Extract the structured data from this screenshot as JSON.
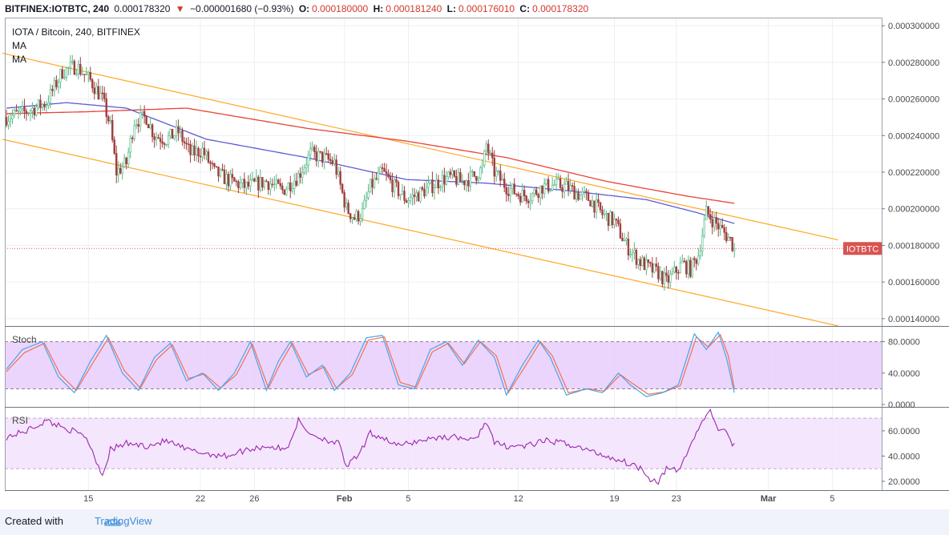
{
  "header": {
    "symbol": "BITFINEX:IOTBTC, 240",
    "last": "0.000178320",
    "change_arrow": "▼",
    "change": "−0.000001680 (−0.93%)",
    "open_label": "O:",
    "open": "0.000180000",
    "high_label": "H:",
    "high": "0.000181240",
    "low_label": "L:",
    "low": "0.000176010",
    "close_label": "C:",
    "close": "0.000178320"
  },
  "legend": {
    "title": "IOTA / Bitcoin, 240, BITFINEX",
    "ma1": "MA",
    "ma2": "MA"
  },
  "price_badge": "IOTBTC",
  "footer": {
    "created_with": "Created with",
    "brand": "TradingView",
    "logo_icon": "tradingview-cloud-icon"
  },
  "colors": {
    "up": "#53b987",
    "down": "#a13e3e",
    "candle_up_body": "#ffffff",
    "ma_blue": "#5c5bd5",
    "ma_red": "#e8433a",
    "channel": "#ffa726",
    "stoch_k": "#4aa4e8",
    "stoch_d": "#f26f52",
    "stoch_band": "#e6c7fb",
    "rsi_line": "#9c27b0",
    "rsi_band": "#f3e3fc",
    "price_line": "#e0584c"
  },
  "chart_data": [
    {
      "type": "candlestick",
      "title": "IOTA / Bitcoin, 240, BITFINEX",
      "x_ticks": [
        "15",
        "22",
        "26",
        "Feb",
        "5",
        "12",
        "19",
        "23",
        "Mar",
        "5"
      ],
      "y_ticks": [
        "0.000300000",
        "0.000280000",
        "0.000260000",
        "0.000240000",
        "0.000220000",
        "0.000200000",
        "0.000180000",
        "0.000160000",
        "0.000140000"
      ],
      "ylim": [
        0.000136,
        0.000304
      ],
      "last_price": 0.00017832,
      "ohlc_keypoints": [
        [
          0,
          0.00025
        ],
        [
          10,
          0.000253
        ],
        [
          20,
          0.000258
        ],
        [
          28,
          0.000275
        ],
        [
          35,
          0.000278
        ],
        [
          42,
          0.00027
        ],
        [
          48,
          0.00026
        ],
        [
          52,
          0.000245
        ],
        [
          55,
          0.00022
        ],
        [
          60,
          0.000225
        ],
        [
          64,
          0.000248
        ],
        [
          70,
          0.00025
        ],
        [
          74,
          0.00024
        ],
        [
          80,
          0.000238
        ],
        [
          86,
          0.000242
        ],
        [
          92,
          0.00023
        ],
        [
          98,
          0.000232
        ],
        [
          104,
          0.00022
        ],
        [
          112,
          0.000215
        ],
        [
          120,
          0.000212
        ],
        [
          130,
          0.000215
        ],
        [
          138,
          0.00021
        ],
        [
          146,
          0.000218
        ],
        [
          152,
          0.00023
        ],
        [
          158,
          0.000228
        ],
        [
          164,
          0.000225
        ],
        [
          170,
          0.0002
        ],
        [
          174,
          0.000195
        ],
        [
          178,
          0.000198
        ],
        [
          182,
          0.000212
        ],
        [
          188,
          0.00022
        ],
        [
          194,
          0.000212
        ],
        [
          200,
          0.000205
        ],
        [
          206,
          0.000208
        ],
        [
          212,
          0.000212
        ],
        [
          218,
          0.000216
        ],
        [
          222,
          0.000217
        ],
        [
          228,
          0.000215
        ],
        [
          234,
          0.000218
        ],
        [
          238,
          0.000222
        ],
        [
          240,
          0.000235
        ],
        [
          244,
          0.00022
        ],
        [
          250,
          0.000212
        ],
        [
          256,
          0.000208
        ],
        [
          262,
          0.000207
        ],
        [
          268,
          0.000212
        ],
        [
          274,
          0.000213
        ],
        [
          280,
          0.000212
        ],
        [
          286,
          0.000208
        ],
        [
          292,
          0.000205
        ],
        [
          298,
          0.000197
        ],
        [
          304,
          0.000193
        ],
        [
          310,
          0.00018
        ],
        [
          316,
          0.000172
        ],
        [
          322,
          0.000167
        ],
        [
          326,
          0.000165
        ],
        [
          330,
          0.00016
        ],
        [
          334,
          0.000165
        ],
        [
          338,
          0.00017
        ],
        [
          342,
          0.000167
        ],
        [
          346,
          0.000175
        ],
        [
          350,
          0.000198
        ],
        [
          354,
          0.000193
        ],
        [
          358,
          0.000188
        ],
        [
          362,
          0.000183
        ],
        [
          364,
          0.000178
        ]
      ],
      "ma_fast_keypoints": [
        [
          0,
          0.000255
        ],
        [
          30,
          0.000258
        ],
        [
          60,
          0.000255
        ],
        [
          100,
          0.000238
        ],
        [
          150,
          0.000228
        ],
        [
          200,
          0.000216
        ],
        [
          240,
          0.000214
        ],
        [
          280,
          0.00021
        ],
        [
          320,
          0.000205
        ],
        [
          345,
          0.000198
        ],
        [
          364,
          0.000192
        ]
      ],
      "ma_slow_keypoints": [
        [
          0,
          0.000252
        ],
        [
          40,
          0.000253
        ],
        [
          90,
          0.000255
        ],
        [
          150,
          0.000244
        ],
        [
          200,
          0.000237
        ],
        [
          250,
          0.000228
        ],
        [
          300,
          0.000215
        ],
        [
          340,
          0.000207
        ],
        [
          364,
          0.000203
        ]
      ],
      "channel_upper": [
        [
          -2,
          0.000285
        ],
        [
          416,
          0.000183
        ]
      ],
      "channel_lower": [
        [
          -2,
          0.000238
        ],
        [
          416,
          0.000136
        ]
      ]
    },
    {
      "type": "line",
      "title": "Stoch",
      "y_ticks": [
        "80.0000",
        "40.0000",
        "0.0000"
      ],
      "ylim": [
        -3,
        100
      ],
      "band": [
        20,
        80
      ],
      "k_keypoints": [
        [
          0,
          45
        ],
        [
          8,
          70
        ],
        [
          18,
          80
        ],
        [
          26,
          35
        ],
        [
          34,
          15
        ],
        [
          42,
          55
        ],
        [
          50,
          88
        ],
        [
          58,
          40
        ],
        [
          66,
          18
        ],
        [
          74,
          60
        ],
        [
          82,
          78
        ],
        [
          90,
          30
        ],
        [
          98,
          40
        ],
        [
          106,
          18
        ],
        [
          114,
          40
        ],
        [
          122,
          80
        ],
        [
          130,
          18
        ],
        [
          136,
          55
        ],
        [
          142,
          80
        ],
        [
          150,
          35
        ],
        [
          158,
          50
        ],
        [
          164,
          18
        ],
        [
          172,
          40
        ],
        [
          180,
          85
        ],
        [
          188,
          88
        ],
        [
          196,
          25
        ],
        [
          204,
          20
        ],
        [
          212,
          70
        ],
        [
          220,
          80
        ],
        [
          228,
          50
        ],
        [
          236,
          82
        ],
        [
          244,
          60
        ],
        [
          250,
          12
        ],
        [
          258,
          50
        ],
        [
          266,
          82
        ],
        [
          272,
          60
        ],
        [
          280,
          12
        ],
        [
          290,
          20
        ],
        [
          298,
          15
        ],
        [
          306,
          40
        ],
        [
          312,
          25
        ],
        [
          320,
          10
        ],
        [
          328,
          15
        ],
        [
          336,
          25
        ],
        [
          344,
          90
        ],
        [
          350,
          70
        ],
        [
          356,
          92
        ],
        [
          360,
          60
        ],
        [
          364,
          15
        ]
      ],
      "d_keypoints": [
        [
          0,
          42
        ],
        [
          9,
          66
        ],
        [
          19,
          78
        ],
        [
          27,
          38
        ],
        [
          35,
          18
        ],
        [
          43,
          52
        ],
        [
          51,
          85
        ],
        [
          59,
          43
        ],
        [
          67,
          21
        ],
        [
          75,
          57
        ],
        [
          83,
          76
        ],
        [
          91,
          33
        ],
        [
          99,
          39
        ],
        [
          107,
          21
        ],
        [
          115,
          38
        ],
        [
          123,
          77
        ],
        [
          131,
          21
        ],
        [
          137,
          52
        ],
        [
          143,
          78
        ],
        [
          151,
          38
        ],
        [
          159,
          48
        ],
        [
          165,
          21
        ],
        [
          173,
          38
        ],
        [
          181,
          82
        ],
        [
          189,
          86
        ],
        [
          197,
          28
        ],
        [
          205,
          22
        ],
        [
          213,
          67
        ],
        [
          221,
          78
        ],
        [
          229,
          52
        ],
        [
          237,
          80
        ],
        [
          245,
          62
        ],
        [
          251,
          15
        ],
        [
          259,
          47
        ],
        [
          267,
          80
        ],
        [
          273,
          62
        ],
        [
          281,
          15
        ],
        [
          291,
          20
        ],
        [
          299,
          17
        ],
        [
          307,
          38
        ],
        [
          313,
          27
        ],
        [
          321,
          13
        ],
        [
          329,
          16
        ],
        [
          337,
          24
        ],
        [
          345,
          86
        ],
        [
          351,
          73
        ],
        [
          357,
          89
        ],
        [
          361,
          62
        ],
        [
          364,
          20
        ]
      ]
    },
    {
      "type": "line",
      "title": "RSI",
      "y_ticks": [
        "60.0000",
        "40.0000",
        "20.0000"
      ],
      "ylim": [
        13,
        79
      ],
      "band": [
        30,
        70
      ],
      "keypoints": [
        [
          0,
          55
        ],
        [
          10,
          60
        ],
        [
          20,
          68
        ],
        [
          30,
          62
        ],
        [
          40,
          55
        ],
        [
          44,
          40
        ],
        [
          48,
          25
        ],
        [
          52,
          45
        ],
        [
          60,
          50
        ],
        [
          70,
          48
        ],
        [
          80,
          52
        ],
        [
          90,
          45
        ],
        [
          100,
          42
        ],
        [
          110,
          40
        ],
        [
          120,
          45
        ],
        [
          130,
          48
        ],
        [
          140,
          45
        ],
        [
          146,
          68
        ],
        [
          150,
          60
        ],
        [
          156,
          55
        ],
        [
          166,
          50
        ],
        [
          170,
          32
        ],
        [
          176,
          40
        ],
        [
          182,
          58
        ],
        [
          188,
          55
        ],
        [
          196,
          48
        ],
        [
          206,
          52
        ],
        [
          216,
          55
        ],
        [
          226,
          55
        ],
        [
          234,
          52
        ],
        [
          240,
          68
        ],
        [
          244,
          50
        ],
        [
          250,
          48
        ],
        [
          260,
          48
        ],
        [
          270,
          52
        ],
        [
          280,
          50
        ],
        [
          290,
          45
        ],
        [
          300,
          40
        ],
        [
          310,
          35
        ],
        [
          318,
          30
        ],
        [
          322,
          22
        ],
        [
          326,
          20
        ],
        [
          330,
          30
        ],
        [
          336,
          28
        ],
        [
          344,
          55
        ],
        [
          348,
          68
        ],
        [
          352,
          75
        ],
        [
          356,
          62
        ],
        [
          360,
          58
        ],
        [
          364,
          48
        ]
      ]
    }
  ]
}
